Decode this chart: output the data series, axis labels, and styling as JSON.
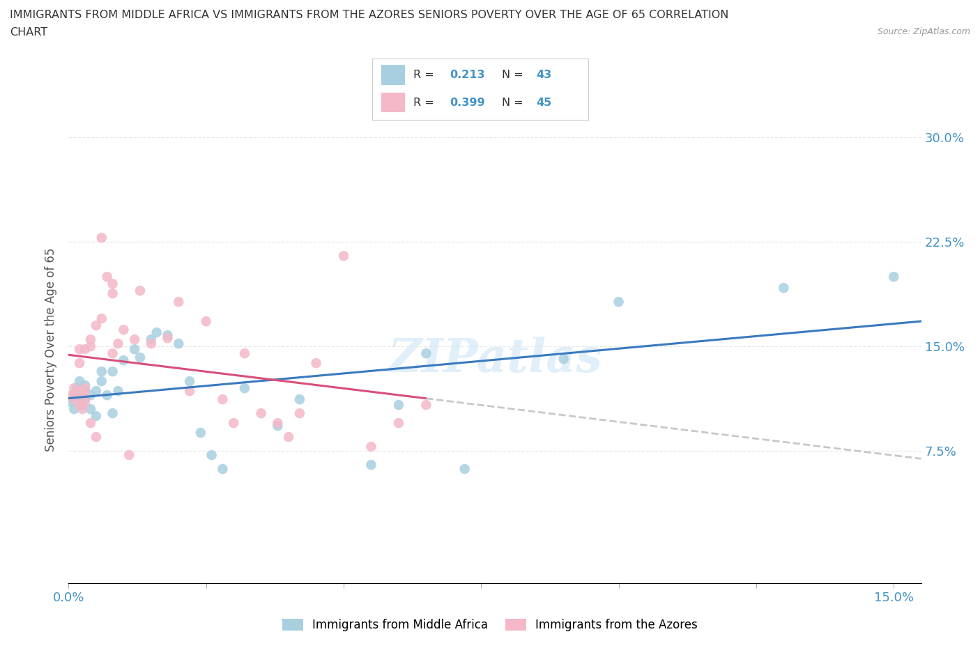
{
  "title_line1": "IMMIGRANTS FROM MIDDLE AFRICA VS IMMIGRANTS FROM THE AZORES SENIORS POVERTY OVER THE AGE OF 65 CORRELATION",
  "title_line2": "CHART",
  "source_text": "Source: ZipAtlas.com",
  "ylabel": "Seniors Poverty Over the Age of 65",
  "xlim": [
    0.0,
    0.155
  ],
  "ylim": [
    -0.02,
    0.315
  ],
  "blue_color": "#a8cfe0",
  "pink_color": "#f4b8c8",
  "line_blue": "#3a7abf",
  "line_pink": "#d94f7a",
  "trendline_gray": "#c8c8c8",
  "R_blue": 0.213,
  "N_blue": 43,
  "R_pink": 0.399,
  "N_pink": 45,
  "legend_label_blue": "Immigrants from Middle Africa",
  "legend_label_pink": "Immigrants from the Azores",
  "blue_scatter_x": [
    0.0005,
    0.001,
    0.0015,
    0.001,
    0.002,
    0.002,
    0.002,
    0.0025,
    0.003,
    0.003,
    0.003,
    0.004,
    0.004,
    0.005,
    0.005,
    0.006,
    0.006,
    0.007,
    0.008,
    0.008,
    0.009,
    0.01,
    0.012,
    0.013,
    0.015,
    0.016,
    0.018,
    0.02,
    0.022,
    0.024,
    0.026,
    0.028,
    0.032,
    0.038,
    0.042,
    0.055,
    0.06,
    0.065,
    0.072,
    0.09,
    0.1,
    0.13,
    0.15
  ],
  "blue_scatter_y": [
    0.11,
    0.115,
    0.12,
    0.105,
    0.112,
    0.118,
    0.125,
    0.108,
    0.113,
    0.122,
    0.118,
    0.105,
    0.115,
    0.1,
    0.118,
    0.125,
    0.132,
    0.115,
    0.102,
    0.132,
    0.118,
    0.14,
    0.148,
    0.142,
    0.155,
    0.16,
    0.158,
    0.152,
    0.125,
    0.088,
    0.072,
    0.062,
    0.12,
    0.093,
    0.112,
    0.065,
    0.108,
    0.145,
    0.062,
    0.141,
    0.182,
    0.192,
    0.2
  ],
  "pink_scatter_x": [
    0.0005,
    0.001,
    0.001,
    0.002,
    0.002,
    0.002,
    0.002,
    0.0025,
    0.003,
    0.003,
    0.003,
    0.003,
    0.004,
    0.004,
    0.004,
    0.005,
    0.005,
    0.006,
    0.006,
    0.007,
    0.008,
    0.008,
    0.008,
    0.009,
    0.01,
    0.011,
    0.012,
    0.013,
    0.015,
    0.018,
    0.02,
    0.022,
    0.025,
    0.028,
    0.03,
    0.032,
    0.035,
    0.038,
    0.04,
    0.042,
    0.045,
    0.05,
    0.055,
    0.06,
    0.065
  ],
  "pink_scatter_y": [
    0.115,
    0.112,
    0.12,
    0.108,
    0.118,
    0.138,
    0.148,
    0.105,
    0.11,
    0.115,
    0.12,
    0.148,
    0.15,
    0.095,
    0.155,
    0.085,
    0.165,
    0.17,
    0.228,
    0.2,
    0.188,
    0.195,
    0.145,
    0.152,
    0.162,
    0.072,
    0.155,
    0.19,
    0.152,
    0.156,
    0.182,
    0.118,
    0.168,
    0.112,
    0.095,
    0.145,
    0.102,
    0.095,
    0.085,
    0.102,
    0.138,
    0.215,
    0.078,
    0.095,
    0.108
  ],
  "watermark_text": "ZIPatlas",
  "background_color": "#ffffff",
  "grid_color": "#e8e8e8",
  "x_ticks": [
    0.0,
    0.025,
    0.05,
    0.075,
    0.1,
    0.125,
    0.15
  ],
  "y_ticks": [
    0.075,
    0.15,
    0.225,
    0.3
  ]
}
